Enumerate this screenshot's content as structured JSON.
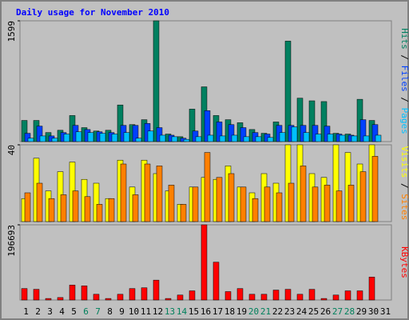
{
  "chart_data": [
    {
      "type": "bar",
      "title": "Daily usage for November 2010",
      "legend_separator": "/",
      "ylim": [
        0,
        1599
      ],
      "yticks": [
        1599
      ],
      "series": [
        {
          "name": "Hits",
          "color": "#008060",
          "values": [
            280,
            280,
            120,
            150,
            345,
            185,
            140,
            150,
            485,
            225,
            290,
            1599,
            100,
            65,
            430,
            725,
            345,
            290,
            250,
            160,
            110,
            260,
            1330,
            575,
            540,
            530,
            110,
            100,
            560,
            280,
            0
          ]
        },
        {
          "name": "Files",
          "color": "#0040ff",
          "values": [
            110,
            205,
            75,
            120,
            215,
            160,
            130,
            120,
            215,
            215,
            240,
            185,
            85,
            45,
            140,
            410,
            260,
            225,
            185,
            120,
            100,
            215,
            215,
            215,
            215,
            205,
            100,
            85,
            290,
            225,
            0
          ]
        },
        {
          "name": "Pages",
          "color": "#00c0ff",
          "values": [
            45,
            75,
            45,
            100,
            130,
            120,
            110,
            100,
            120,
            45,
            140,
            85,
            65,
            30,
            65,
            85,
            75,
            85,
            65,
            65,
            55,
            120,
            195,
            120,
            100,
            100,
            85,
            75,
            75,
            85,
            0
          ]
        }
      ]
    },
    {
      "type": "bar",
      "legend_separator": "/",
      "ylim": [
        0,
        40
      ],
      "yticks": [
        40
      ],
      "series": [
        {
          "name": "Visits",
          "color": "#ffff00",
          "values": [
            12,
            33,
            16,
            26,
            31,
            22,
            20,
            12,
            32,
            18,
            32,
            25,
            16,
            9,
            18,
            23,
            22,
            29,
            18,
            15,
            25,
            20,
            40,
            40,
            25,
            23,
            40,
            36,
            30,
            40,
            0
          ]
        },
        {
          "name": "Sites",
          "color": "#ff8000",
          "values": [
            15,
            20,
            12,
            14,
            16,
            13,
            9,
            12,
            30,
            14,
            30,
            29,
            19,
            9,
            18,
            36,
            23,
            25,
            18,
            12,
            18,
            15,
            20,
            29,
            18,
            19,
            16,
            19,
            26,
            34,
            0
          ]
        }
      ]
    },
    {
      "type": "bar",
      "ylim": [
        0,
        196693
      ],
      "yticks": [
        196693
      ],
      "categories": [
        "1",
        "2",
        "3",
        "4",
        "5",
        "6",
        "7",
        "8",
        "9",
        "10",
        "11",
        "12",
        "13",
        "14",
        "15",
        "16",
        "17",
        "18",
        "19",
        "20",
        "21",
        "22",
        "23",
        "24",
        "25",
        "26",
        "27",
        "28",
        "29",
        "30",
        "31"
      ],
      "category_colors": [
        "#000000",
        "#000000",
        "#000000",
        "#000000",
        "#000000",
        "#00805c",
        "#00805c",
        "#000000",
        "#000000",
        "#000000",
        "#000000",
        "#000000",
        "#00805c",
        "#00805c",
        "#000000",
        "#000000",
        "#000000",
        "#000000",
        "#000000",
        "#00805c",
        "#00805c",
        "#000000",
        "#000000",
        "#000000",
        "#000000",
        "#000000",
        "#00805c",
        "#00805c",
        "#000000",
        "#000000",
        "#000000"
      ],
      "series": [
        {
          "name": "KBytes",
          "color": "#ff0000",
          "values": [
            30000,
            28000,
            4000,
            6500,
            39000,
            37000,
            15000,
            4000,
            15000,
            30000,
            32000,
            52000,
            4000,
            13000,
            24000,
            196693,
            99000,
            22000,
            30000,
            15000,
            15000,
            26000,
            28000,
            15000,
            28000,
            4000,
            13000,
            24000,
            24000,
            60000,
            0
          ]
        }
      ]
    }
  ]
}
